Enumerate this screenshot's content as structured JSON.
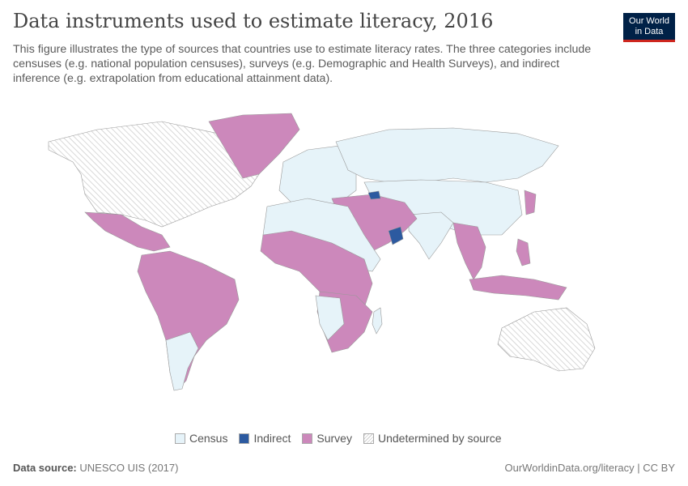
{
  "header": {
    "title": "Data instruments used to estimate literacy, 2016",
    "subtitle": "This figure illustrates the type of sources that countries use to estimate literacy rates. The three categories include censuses (e.g. national population censuses), surveys (e.g. Demographic and Health Surveys), and indirect inference (e.g. extrapolation from educational attainment data).",
    "logo_line1": "Our World",
    "logo_line2": "in Data"
  },
  "legend": {
    "items": [
      {
        "label": "Census",
        "color": "#e6f3f9"
      },
      {
        "label": "Indirect",
        "color": "#2c5aa0"
      },
      {
        "label": "Survey",
        "color": "#cc88bb"
      },
      {
        "label": "Undetermined by source",
        "color": "hatched"
      }
    ]
  },
  "footer": {
    "source_label": "Data source:",
    "source": "UNESCO UIS (2017)",
    "link": "OurWorldinData.org/literacy | CC BY"
  }
}
